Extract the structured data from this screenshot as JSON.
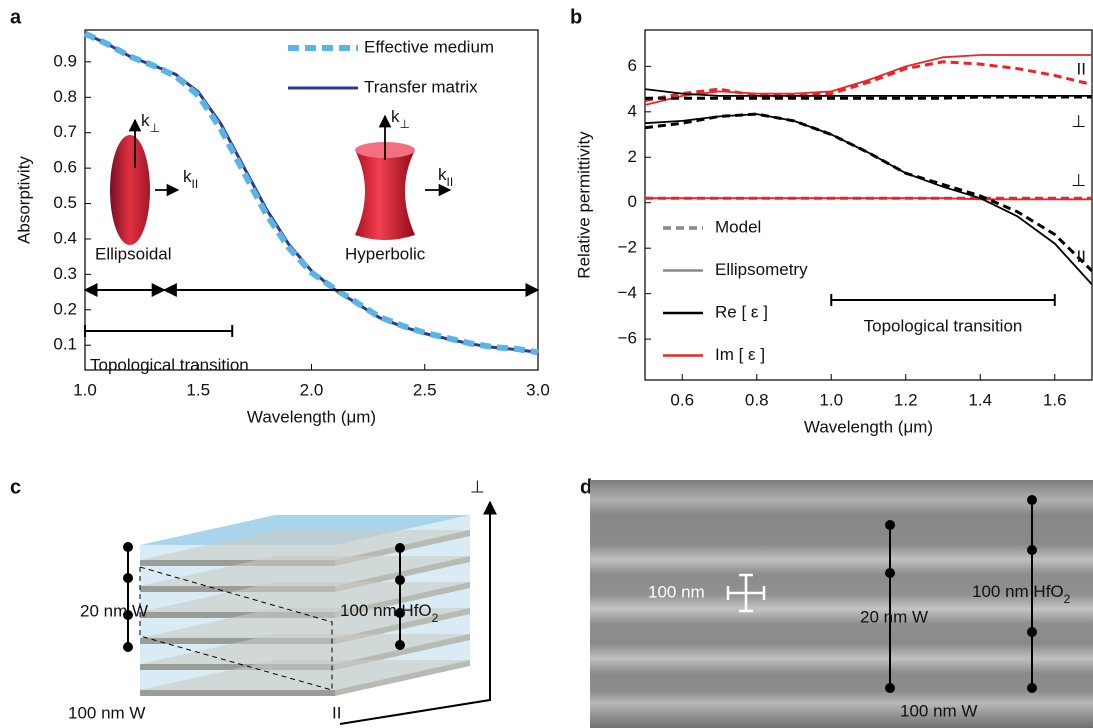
{
  "chart_data": [
    {
      "type": "line",
      "panel": "a",
      "xlabel": "Wavelength (μm)",
      "ylabel": "Absorptivity",
      "x": [
        1.0,
        1.1,
        1.2,
        1.3,
        1.4,
        1.5,
        1.6,
        1.7,
        1.8,
        1.9,
        2.0,
        2.1,
        2.2,
        2.3,
        2.4,
        2.5,
        2.6,
        2.7,
        2.8,
        2.9,
        3.0
      ],
      "xlim": [
        1,
        3
      ],
      "xticks": [
        {
          "value": 1,
          "label": "1.0"
        },
        1.5,
        {
          "value": 2,
          "label": "2.0"
        },
        2.5,
        {
          "value": 3,
          "label": "3.0"
        }
      ],
      "ylim": [
        0.03,
        0.99
      ],
      "yticks": [
        0.1,
        0.2,
        0.3,
        0.4,
        0.5,
        0.6,
        0.7,
        0.8,
        0.9
      ],
      "legend_position": "upper right",
      "series": [
        {
          "name": "Effective medium",
          "color": "#5ab4e6",
          "dash": true,
          "values": [
            0.98,
            0.95,
            0.915,
            0.89,
            0.86,
            0.805,
            0.71,
            0.59,
            0.47,
            0.375,
            0.305,
            0.26,
            0.22,
            0.18,
            0.155,
            0.135,
            0.12,
            0.105,
            0.095,
            0.09,
            0.08
          ]
        },
        {
          "name": "Transfer matrix",
          "color": "#2e3a8c",
          "dash": false,
          "values": [
            0.98,
            0.95,
            0.915,
            0.89,
            0.865,
            0.815,
            0.725,
            0.605,
            0.485,
            0.385,
            0.31,
            0.258,
            0.218,
            0.178,
            0.153,
            0.133,
            0.118,
            0.104,
            0.094,
            0.088,
            0.08
          ]
        }
      ],
      "annotations": [
        "Ellipsoidal",
        "Hyperbolic",
        "Topological transition"
      ],
      "k_labels": [
        {
          "text": "k",
          "sub": "⊥"
        },
        {
          "text": "k",
          "sub": "II"
        },
        {
          "text": "k",
          "sub": "⊥"
        },
        {
          "text": "k",
          "sub": "II"
        }
      ],
      "regime_arrows": [
        1.0,
        1.35,
        3.0
      ],
      "transition_range": [
        1.0,
        1.65
      ]
    },
    {
      "type": "line",
      "panel": "b",
      "xlabel": "Wavelength (μm)",
      "ylabel": "Relative permittivity",
      "x": [
        0.5,
        0.6,
        0.7,
        0.8,
        0.9,
        1.0,
        1.1,
        1.2,
        1.3,
        1.4,
        1.5,
        1.6,
        1.7
      ],
      "xlim": [
        0.5,
        1.7
      ],
      "xticks": [
        0.6,
        0.8,
        {
          "value": 1,
          "label": "1.0"
        },
        1.2,
        1.4,
        1.6
      ],
      "ylim": [
        -7.8,
        7.6
      ],
      "yticks": [
        {
          "value": -6,
          "label": "−6"
        },
        {
          "value": -4,
          "label": "−4"
        },
        {
          "value": -2,
          "label": "−2"
        },
        0,
        2,
        4,
        6
      ],
      "legend_position": "lower left",
      "legend": [
        {
          "label": "Model",
          "color": "#888888",
          "dash": true
        },
        {
          "label": "Ellipsometry",
          "color": "#888888",
          "dash": false
        },
        {
          "label": "Re [ ε ]",
          "color": "#000000",
          "dash": false
        },
        {
          "label": "Im [ ε ]",
          "color": "#e8262a",
          "dash": false
        }
      ],
      "curve_labels": [
        "II",
        "⊥",
        "⊥",
        "II"
      ],
      "series": [
        {
          "curve": 0,
          "color": "#e8262a",
          "dash": false,
          "values": [
            4.3,
            4.7,
            4.9,
            4.8,
            4.8,
            4.9,
            5.4,
            6.0,
            6.4,
            6.5,
            6.5,
            6.5,
            6.5
          ]
        },
        {
          "curve": 0,
          "color": "#e8262a",
          "dash": true,
          "values": [
            4.5,
            4.8,
            5.0,
            4.7,
            4.7,
            4.8,
            5.3,
            5.9,
            6.2,
            6.1,
            5.9,
            5.6,
            5.2
          ]
        },
        {
          "curve": 1,
          "color": "#000000",
          "dash": false,
          "values": [
            5.0,
            4.8,
            4.7,
            4.7,
            4.7,
            4.7,
            4.7,
            4.7,
            4.7,
            4.7,
            4.7,
            4.7,
            4.7
          ]
        },
        {
          "curve": 1,
          "color": "#000000",
          "dash": true,
          "values": [
            4.6,
            4.6,
            4.6,
            4.6,
            4.6,
            4.6,
            4.6,
            4.6,
            4.6,
            4.65,
            4.65,
            4.65,
            4.65
          ]
        },
        {
          "curve": 2,
          "color": "#e8262a",
          "dash": false,
          "values": [
            0.2,
            0.2,
            0.2,
            0.2,
            0.2,
            0.2,
            0.2,
            0.2,
            0.2,
            0.15,
            0.15,
            0.15,
            0.15
          ]
        },
        {
          "curve": 2,
          "color": "#e8262a",
          "dash": true,
          "values": [
            0.2,
            0.2,
            0.2,
            0.2,
            0.2,
            0.2,
            0.2,
            0.2,
            0.2,
            0.2,
            0.2,
            0.2,
            0.2
          ]
        },
        {
          "curve": 3,
          "color": "#000000",
          "dash": false,
          "values": [
            3.5,
            3.6,
            3.8,
            3.9,
            3.6,
            3.0,
            2.2,
            1.3,
            0.7,
            0.2,
            -0.6,
            -1.8,
            -3.6
          ]
        },
        {
          "curve": 3,
          "color": "#000000",
          "dash": true,
          "values": [
            3.3,
            3.5,
            3.8,
            3.9,
            3.6,
            3.0,
            2.2,
            1.3,
            0.8,
            0.3,
            -0.4,
            -1.4,
            -3.0
          ]
        }
      ],
      "annotations": [
        "Topological transition"
      ],
      "transition_range": [
        1.0,
        1.6
      ]
    }
  ],
  "diagram_c": {
    "panel": "c",
    "thin_layer": "20 nm W",
    "oxide_layer": {
      "text": "100 nm HfO",
      "sub": "2"
    },
    "thick_layer": "100 nm W",
    "perp": "⊥",
    "par": "II"
  },
  "image_d": {
    "panel": "d",
    "scale_bar": "100 nm",
    "thin_layer": "20 nm W",
    "oxide_layer": {
      "text": "100 nm HfO",
      "sub": "2"
    },
    "thick_layer": "100 nm W"
  }
}
